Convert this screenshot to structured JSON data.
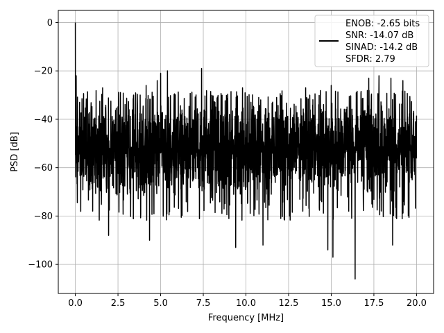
{
  "chart_data": {
    "type": "line",
    "xlabel": "Frequency [MHz]",
    "ylabel": "PSD [dB]",
    "xlim": [
      -1.0,
      21.0
    ],
    "ylim": [
      -112,
      5
    ],
    "xticks": [
      0.0,
      2.5,
      5.0,
      7.5,
      10.0,
      12.5,
      15.0,
      17.5,
      20.0
    ],
    "xtick_labels": [
      "0.0",
      "2.5",
      "5.0",
      "7.5",
      "10.0",
      "12.5",
      "15.0",
      "17.5",
      "20.0"
    ],
    "yticks": [
      0,
      -20,
      -40,
      -60,
      -80,
      -100
    ],
    "ytick_labels": [
      "0",
      "−20",
      "−40",
      "−60",
      "−80",
      "−100"
    ],
    "grid": true,
    "legend_position": "top-right",
    "legend_lines": [
      "ENOB: -2.65 bits",
      "SNR: -14.07 dB",
      "SINAD: -14.2 dB",
      "SFDR: 2.79"
    ],
    "series": [
      {
        "color": "#000000",
        "x_range": [
          0.0,
          20.0
        ],
        "noise_band": [
          -72,
          -32
        ],
        "peaks": [
          {
            "x": 0.0,
            "y": 0
          },
          {
            "x": 0.05,
            "y": -22
          },
          {
            "x": 1.6,
            "y": -27
          },
          {
            "x": 4.15,
            "y": -26
          },
          {
            "x": 4.8,
            "y": -24
          },
          {
            "x": 5.0,
            "y": -21
          },
          {
            "x": 5.4,
            "y": -20
          },
          {
            "x": 7.4,
            "y": -19
          },
          {
            "x": 9.8,
            "y": -27
          },
          {
            "x": 13.5,
            "y": -27
          },
          {
            "x": 15.0,
            "y": -26
          },
          {
            "x": 17.2,
            "y": -23
          },
          {
            "x": 17.8,
            "y": -22
          },
          {
            "x": 18.5,
            "y": -23
          },
          {
            "x": 19.2,
            "y": -24
          }
        ],
        "dips": [
          {
            "x": 1.95,
            "y": -88
          },
          {
            "x": 4.35,
            "y": -90
          },
          {
            "x": 9.4,
            "y": -93
          },
          {
            "x": 11.0,
            "y": -92
          },
          {
            "x": 14.8,
            "y": -94
          },
          {
            "x": 15.1,
            "y": -97
          },
          {
            "x": 16.4,
            "y": -106
          },
          {
            "x": 18.6,
            "y": -92
          }
        ]
      }
    ]
  }
}
